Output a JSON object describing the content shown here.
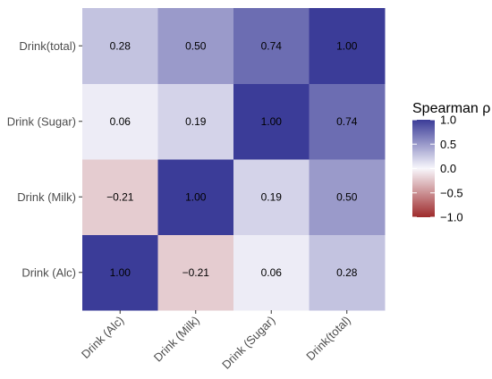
{
  "chart_data": {
    "type": "heatmap",
    "x_categories": [
      "Drink (Alc)",
      "Drink (Milk)",
      "Drink (Sugar)",
      "Drink(total)"
    ],
    "y_categories": [
      "Drink (Alc)",
      "Drink (Milk)",
      "Drink (Sugar)",
      "Drink(total)"
    ],
    "matrix": [
      [
        1.0,
        -0.21,
        0.06,
        0.28
      ],
      [
        -0.21,
        1.0,
        0.19,
        0.5
      ],
      [
        0.06,
        0.19,
        1.0,
        0.74
      ],
      [
        0.28,
        0.5,
        0.74,
        1.0
      ]
    ],
    "cell_labels": [
      [
        "1.00",
        "−0.21",
        "0.06",
        "0.28"
      ],
      [
        "−0.21",
        "1.00",
        "0.19",
        "0.50"
      ],
      [
        "0.06",
        "0.19",
        "1.00",
        "0.74"
      ],
      [
        "0.28",
        "0.50",
        "0.74",
        "1.00"
      ]
    ],
    "legend": {
      "title": "Spearman ρ",
      "range": [
        -1,
        1
      ],
      "ticks": [
        1.0,
        0.5,
        0.0,
        -0.5,
        -1.0
      ],
      "tick_labels": [
        "1.0",
        "0.5",
        "0.0",
        "−0.5",
        "−1.0"
      ],
      "placement": "right"
    },
    "colors": {
      "low": "#9e2a2b",
      "mid": "#f8f7fc",
      "high": "#3b3c98"
    }
  }
}
